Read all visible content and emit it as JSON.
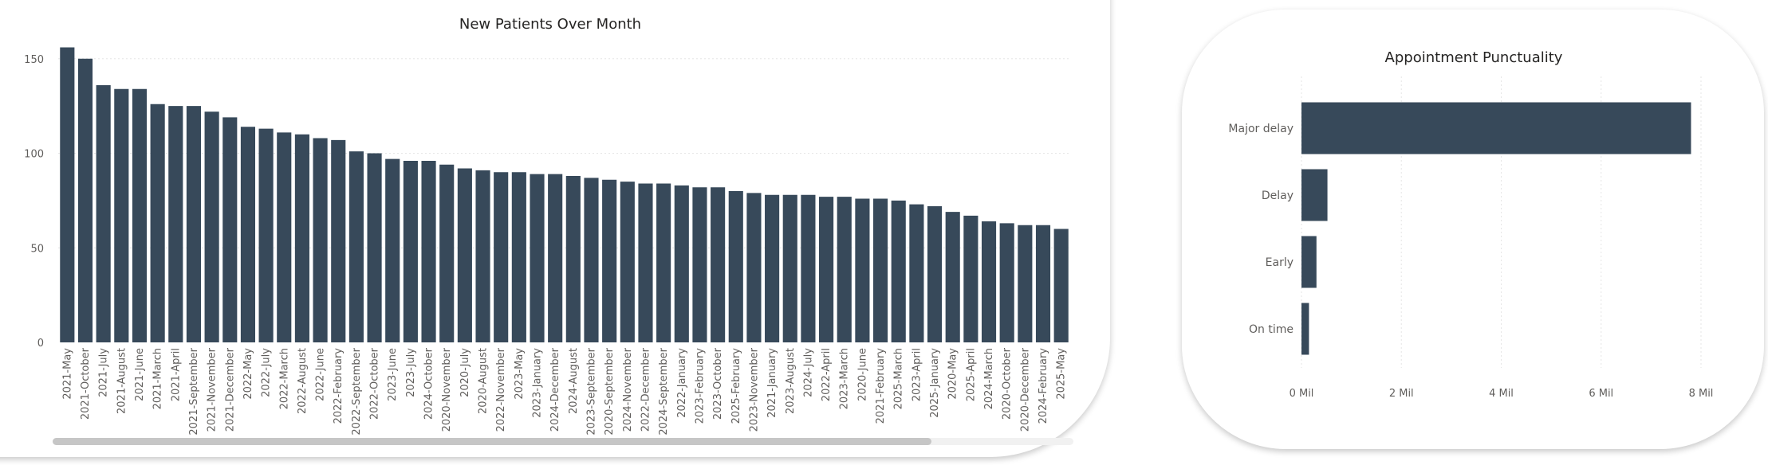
{
  "colors": {
    "bar": "#37495a",
    "grid": "#e6e6e6",
    "scroll_track": "#f1f1f1",
    "scroll_thumb": "#c6c6c6"
  },
  "chart_data": [
    {
      "type": "bar",
      "orientation": "vertical",
      "title": "New Patients Over Month",
      "xlabel": "",
      "ylabel": "",
      "ylim": [
        0,
        160
      ],
      "yticks": [
        0,
        50,
        100,
        150
      ],
      "grid": true,
      "categories": [
        "2021-May",
        "2021-October",
        "2021-July",
        "2021-August",
        "2021-June",
        "2021-March",
        "2021-April",
        "2021-September",
        "2021-November",
        "2021-December",
        "2022-May",
        "2022-July",
        "2022-March",
        "2022-August",
        "2022-June",
        "2022-February",
        "2022-September",
        "2022-October",
        "2023-June",
        "2023-July",
        "2024-October",
        "2020-November",
        "2020-July",
        "2020-August",
        "2022-November",
        "2023-May",
        "2023-January",
        "2024-December",
        "2024-August",
        "2023-September",
        "2020-September",
        "2024-November",
        "2022-December",
        "2024-September",
        "2022-January",
        "2023-February",
        "2023-October",
        "2025-February",
        "2023-November",
        "2021-January",
        "2023-August",
        "2024-July",
        "2022-April",
        "2023-March",
        "2020-June",
        "2021-February",
        "2025-March",
        "2023-April",
        "2025-January",
        "2020-May",
        "2025-April",
        "2024-March",
        "2020-October",
        "2020-December",
        "2024-February",
        "2025-May"
      ],
      "values": [
        156,
        150,
        136,
        134,
        134,
        126,
        125,
        125,
        122,
        119,
        114,
        113,
        111,
        110,
        108,
        107,
        101,
        100,
        97,
        96,
        96,
        94,
        92,
        91,
        90,
        90,
        89,
        89,
        88,
        87,
        86,
        85,
        84,
        84,
        83,
        82,
        82,
        80,
        79,
        78,
        78,
        78,
        77,
        77,
        76,
        76,
        75,
        73,
        72,
        69,
        67,
        64,
        63,
        62,
        62,
        60
      ]
    },
    {
      "type": "bar",
      "orientation": "horizontal",
      "title": "Appointment Punctuality",
      "xlabel": "",
      "ylabel": "",
      "xlim": [
        0,
        8
      ],
      "xticks": [
        "0 Mil",
        "2 Mil",
        "4 Mil",
        "6 Mil",
        "8 Mil"
      ],
      "grid": true,
      "categories": [
        "Major delay",
        "Delay",
        "Early",
        "On time"
      ],
      "values": [
        7.8,
        0.52,
        0.3,
        0.15
      ],
      "value_unit": "Mil"
    }
  ]
}
